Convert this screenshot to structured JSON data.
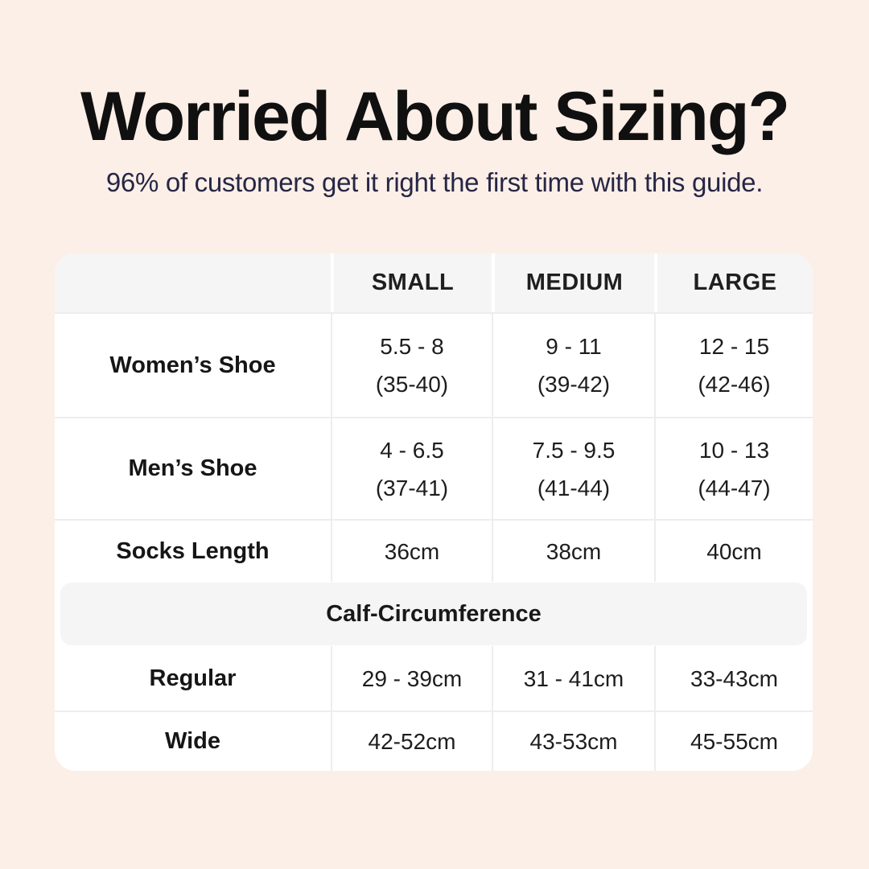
{
  "page": {
    "title": "Worried About Sizing?",
    "subtitle": "96% of customers get it right the first time with this guide.",
    "colors": {
      "background": "#fcefe7",
      "card": "#ffffff",
      "header_band": "#f5f5f6",
      "divider": "#ededee",
      "title_text": "#101010",
      "subtitle_text": "#262645",
      "table_text": "#1c1c1c"
    }
  },
  "table": {
    "columns": [
      "",
      "SMALL",
      "MEDIUM",
      "LARGE"
    ],
    "rows": [
      {
        "label": "Women’s Shoe",
        "small": [
          "5.5 - 8",
          "(35-40)"
        ],
        "medium": [
          "9 - 11",
          "(39-42)"
        ],
        "large": [
          "12 - 15",
          "(42-46)"
        ]
      },
      {
        "label": "Men’s Shoe",
        "small": [
          "4 - 6.5",
          "(37-41)"
        ],
        "medium": [
          "7.5 - 9.5",
          "(41-44)"
        ],
        "large": [
          "10 - 13",
          "(44-47)"
        ]
      },
      {
        "label": "Socks Length",
        "small": [
          "36cm"
        ],
        "medium": [
          "38cm"
        ],
        "large": [
          "40cm"
        ]
      }
    ],
    "section": {
      "header": "Calf-Circumference",
      "rows": [
        {
          "label": "Regular",
          "small": "29 - 39cm",
          "medium": "31 - 41cm",
          "large": "33-43cm"
        },
        {
          "label": "Wide",
          "small": "42-52cm",
          "medium": "43-53cm",
          "large": "45-55cm"
        }
      ]
    }
  }
}
